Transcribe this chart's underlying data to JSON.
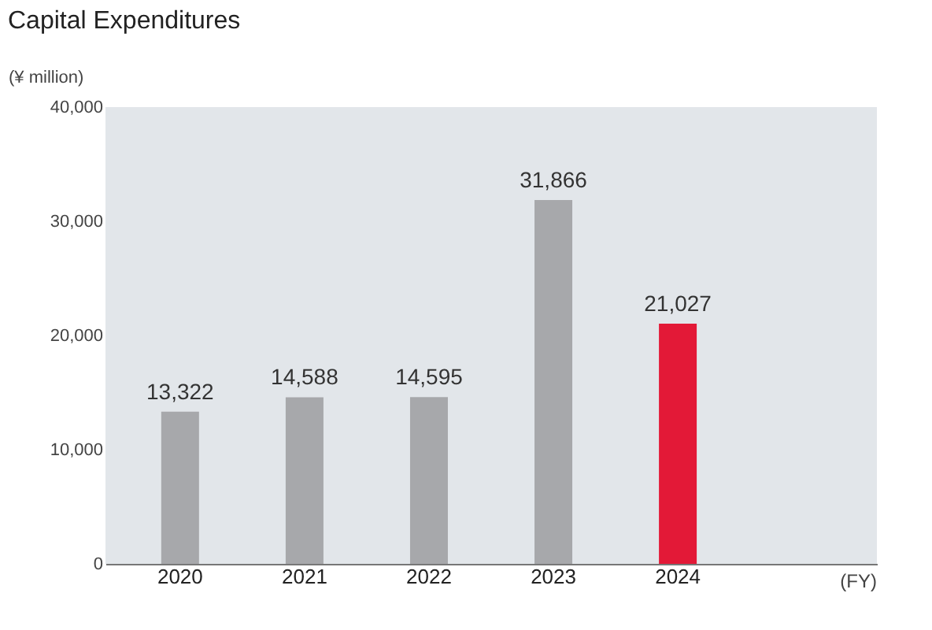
{
  "chart_data": {
    "type": "bar",
    "title": "Capital Expenditures",
    "ylabel": "(¥ million)",
    "annotations": [
      "(FY)"
    ],
    "categories": [
      "2020",
      "2021",
      "2022",
      "2023",
      "2024"
    ],
    "values": [
      13322,
      14588,
      14595,
      31866,
      21027
    ],
    "colors": [
      "#a7a8ab",
      "#a7a8ab",
      "#a7a8ab",
      "#a7a8ab",
      "#e31937"
    ],
    "value_labels": [
      "13,322",
      "14,588",
      "14,595",
      "31,866",
      "21,027"
    ],
    "ylim": [
      0,
      40000
    ],
    "yticks": [
      0,
      {
        "value": 10000,
        "label": "10,000"
      },
      {
        "value": 20000,
        "label": "20,000"
      },
      {
        "value": 30000,
        "label": "30,000"
      },
      {
        "value": 40000,
        "label": "40,000"
      }
    ],
    "grid": false
  }
}
